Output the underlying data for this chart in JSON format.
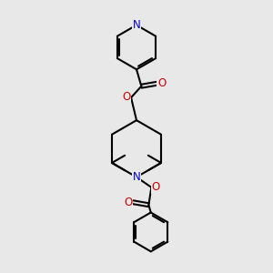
{
  "bg_color": "#e8e8e8",
  "bond_color": "#000000",
  "N_color": "#0000cc",
  "O_color": "#cc0000",
  "line_width": 1.5,
  "figsize": [
    3.0,
    3.0
  ],
  "dpi": 100,
  "xlim": [
    0,
    10
  ],
  "ylim": [
    0,
    10
  ]
}
